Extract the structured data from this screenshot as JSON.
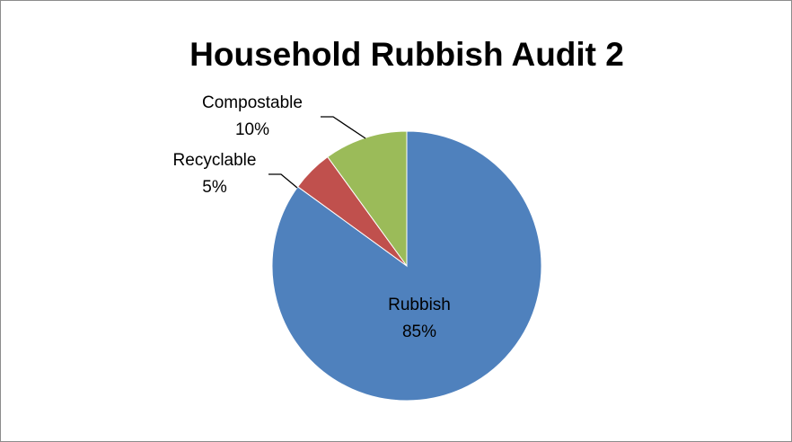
{
  "chart_data": {
    "type": "pie",
    "title": "Household Rubbish Audit 2",
    "slices": [
      {
        "name": "Rubbish",
        "value": 85,
        "label": "85%",
        "color": "#4F81BD"
      },
      {
        "name": "Recyclable",
        "value": 5,
        "label": "5%",
        "color": "#C0504D"
      },
      {
        "name": "Compostable",
        "value": 10,
        "label": "10%",
        "color": "#9BBB59"
      }
    ],
    "start_angle_deg": 0,
    "direction": "clockwise",
    "legend": "none",
    "data_labels": "category-and-percent"
  }
}
